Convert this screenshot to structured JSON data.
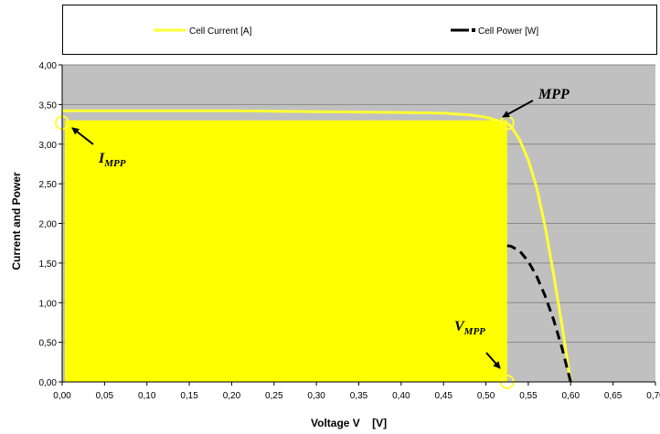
{
  "chart_data": {
    "type": "line",
    "xlabel": "Voltage V    [V]",
    "ylabel": "Current and Power",
    "xlim": [
      0,
      0.7
    ],
    "ylim": [
      0,
      4.0
    ],
    "x_ticks": [
      "0,00",
      "0,05",
      "0,10",
      "0,15",
      "0,20",
      "0,25",
      "0,30",
      "0,35",
      "0,40",
      "0,45",
      "0,50",
      "0,55",
      "0,60",
      "0,65",
      "0,70"
    ],
    "y_ticks": [
      "0,00",
      "0,50",
      "1,00",
      "1,50",
      "2,00",
      "2,50",
      "3,00",
      "3,50",
      "4,00"
    ],
    "grid": true,
    "legend_position": "top",
    "colors": {
      "plot_bg": "#c0c0c0",
      "current": "#ffff33",
      "rect_fill": "#ffff00",
      "power": "#000000",
      "grid": "#8a8a8a"
    },
    "series": [
      {
        "name": "Cell Current  [A]",
        "style": "solid",
        "x": [
          0.0,
          0.1,
          0.2,
          0.3,
          0.4,
          0.45,
          0.48,
          0.5,
          0.51,
          0.52,
          0.525,
          0.53,
          0.54,
          0.55,
          0.56,
          0.57,
          0.58,
          0.59,
          0.595,
          0.6
        ],
        "y": [
          3.42,
          3.42,
          3.42,
          3.41,
          3.4,
          3.39,
          3.37,
          3.34,
          3.31,
          3.28,
          3.26,
          3.22,
          3.05,
          2.8,
          2.45,
          1.95,
          1.35,
          0.7,
          0.35,
          0.0
        ]
      },
      {
        "name": "Cell Power  [W]",
        "style": "dashed",
        "x": [
          0.525,
          0.53,
          0.54,
          0.55,
          0.56,
          0.57,
          0.58,
          0.59,
          0.595,
          0.6
        ],
        "y": [
          1.72,
          1.71,
          1.65,
          1.52,
          1.33,
          1.08,
          0.78,
          0.42,
          0.21,
          0.0
        ]
      }
    ],
    "mpp_rectangle": {
      "v_mpp": 0.525,
      "i_mpp": 3.3
    },
    "annotations": [
      {
        "text": "MPP",
        "at": [
          0.525,
          3.27
        ]
      },
      {
        "text": "I",
        "sub": "MPP",
        "at": [
          0.0,
          3.27
        ]
      },
      {
        "text": "V",
        "sub": "MPP",
        "at": [
          0.525,
          0.0
        ]
      }
    ]
  }
}
